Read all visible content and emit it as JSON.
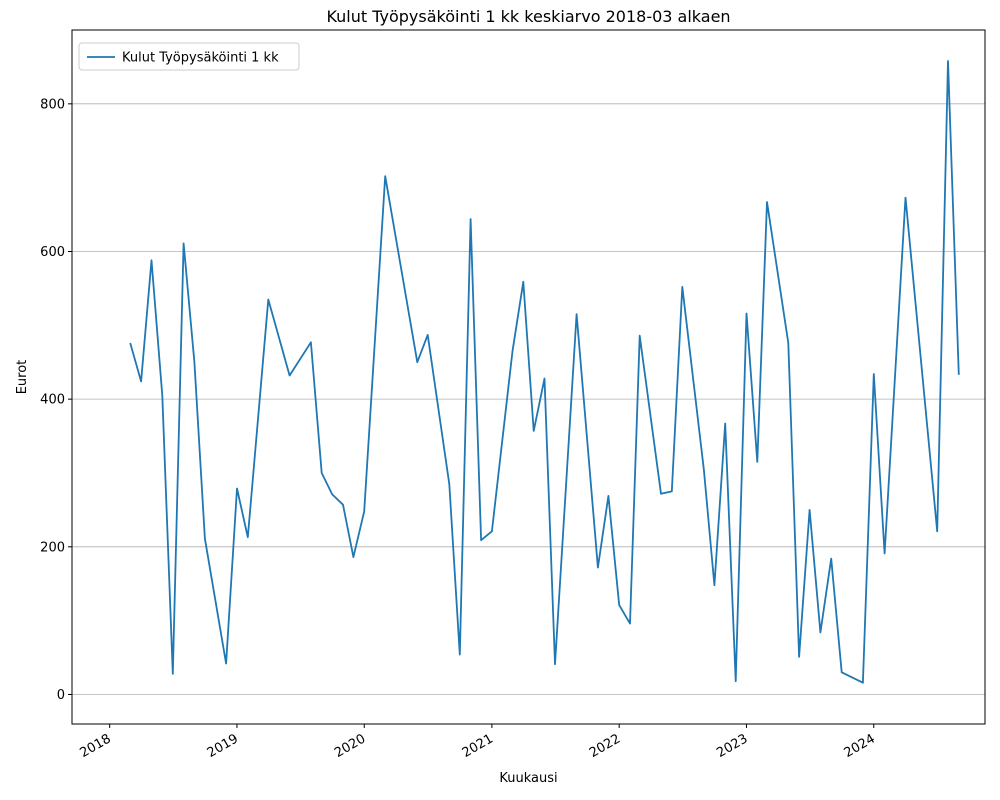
{
  "chart_data": {
    "type": "line",
    "title": "Kulut Työpysäköinti 1 kk keskiarvo 2018-03 alkaen",
    "xlabel": "Kuukausi",
    "ylabel": "Eurot",
    "xlim": [
      "2017-09-15",
      "2024-11-15"
    ],
    "ylim": [
      -40,
      900
    ],
    "x_ticks": [
      "2018",
      "2019",
      "2020",
      "2021",
      "2022",
      "2023",
      "2024"
    ],
    "y_ticks": [
      0,
      200,
      400,
      600,
      800
    ],
    "grid": "horizontal",
    "legend": {
      "position": "top-left"
    },
    "series": [
      {
        "name": "Kulut Työpysäköinti 1 kk",
        "color": "#1f77b4",
        "points": [
          [
            "2018-03",
            476
          ],
          [
            "2018-04",
            424
          ],
          [
            "2018-05",
            588
          ],
          [
            "2018-06",
            405
          ],
          [
            "2018-07",
            28
          ],
          [
            "2018-08",
            611
          ],
          [
            "2018-09",
            450
          ],
          [
            "2018-10",
            211
          ],
          [
            "2018-12",
            42
          ],
          [
            "2019-01",
            279
          ],
          [
            "2019-02",
            213
          ],
          [
            "2019-04",
            535
          ],
          [
            "2019-06",
            432
          ],
          [
            "2019-08",
            477
          ],
          [
            "2019-09",
            300
          ],
          [
            "2019-10",
            271
          ],
          [
            "2019-11",
            257
          ],
          [
            "2019-12",
            186
          ],
          [
            "2020-01",
            248
          ],
          [
            "2020-03",
            702
          ],
          [
            "2020-06",
            450
          ],
          [
            "2020-07",
            487
          ],
          [
            "2020-09",
            285
          ],
          [
            "2020-10",
            54
          ],
          [
            "2020-11",
            644
          ],
          [
            "2020-12",
            209
          ],
          [
            "2021-01",
            221
          ],
          [
            "2021-03",
            465
          ],
          [
            "2021-04",
            559
          ],
          [
            "2021-05",
            357
          ],
          [
            "2021-06",
            428
          ],
          [
            "2021-07",
            41
          ],
          [
            "2021-09",
            515
          ],
          [
            "2021-11",
            172
          ],
          [
            "2021-12",
            269
          ],
          [
            "2022-01",
            121
          ],
          [
            "2022-02",
            96
          ],
          [
            "2022-03",
            486
          ],
          [
            "2022-05",
            272
          ],
          [
            "2022-06",
            275
          ],
          [
            "2022-07",
            552
          ],
          [
            "2022-09",
            304
          ],
          [
            "2022-10",
            148
          ],
          [
            "2022-11",
            367
          ],
          [
            "2022-12",
            18
          ],
          [
            "2023-01",
            516
          ],
          [
            "2023-02",
            315
          ],
          [
            "2023-03",
            667
          ],
          [
            "2023-05",
            476
          ],
          [
            "2023-06",
            51
          ],
          [
            "2023-07",
            250
          ],
          [
            "2023-08",
            84
          ],
          [
            "2023-09",
            184
          ],
          [
            "2023-10",
            30
          ],
          [
            "2023-12",
            16
          ],
          [
            "2024-01",
            434
          ],
          [
            "2024-02",
            191
          ],
          [
            "2024-04",
            673
          ],
          [
            "2024-07",
            221
          ],
          [
            "2024-08",
            858
          ],
          [
            "2024-09",
            433
          ]
        ]
      }
    ]
  }
}
